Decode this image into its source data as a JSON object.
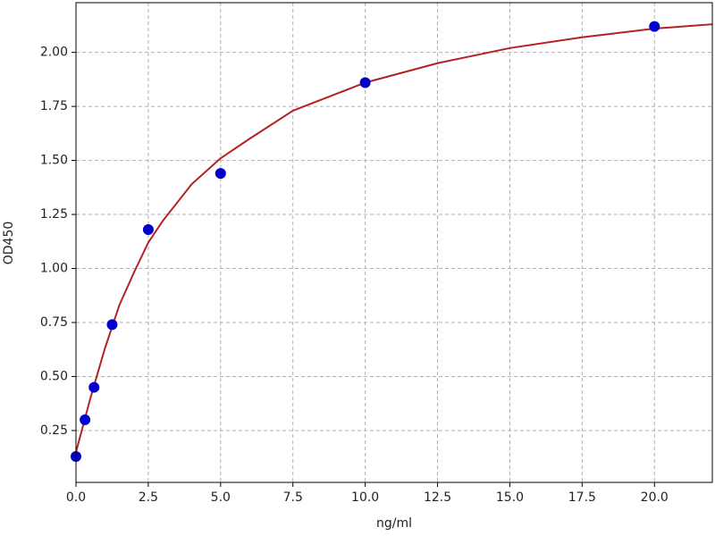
{
  "chart_data": {
    "type": "scatter",
    "x_label": "ng/ml",
    "y_label": "OD450",
    "xlim": [
      0,
      22
    ],
    "ylim": [
      0.01,
      2.23
    ],
    "xticks": [
      {
        "value": 0,
        "label": "0.0"
      },
      2.5,
      {
        "value": 5,
        "label": "5.0"
      },
      7.5,
      {
        "value": 10,
        "label": "10.0"
      },
      12.5,
      {
        "value": 15,
        "label": "15.0"
      },
      17.5,
      {
        "value": 20,
        "label": "20.0"
      }
    ],
    "yticks": [
      0.25,
      {
        "value": 0.5,
        "label": "0.50"
      },
      0.75,
      {
        "value": 1,
        "label": "1.00"
      },
      1.25,
      {
        "value": 1.5,
        "label": "1.50"
      },
      1.75,
      {
        "value": 2,
        "label": "2.00"
      }
    ],
    "grid": true,
    "series": [
      {
        "type": "line",
        "color": "#b22222",
        "x": [
          0,
          0.5,
          1,
          1.5,
          2,
          2.5,
          3,
          4,
          5,
          6,
          7.5,
          10,
          12.5,
          15,
          17.5,
          20,
          22
        ],
        "values": [
          0.15,
          0.4,
          0.63,
          0.83,
          0.98,
          1.12,
          1.22,
          1.39,
          1.51,
          1.6,
          1.73,
          1.86,
          1.95,
          2.02,
          2.07,
          2.11,
          2.13
        ]
      },
      {
        "type": "scatter",
        "color": "#0000cc",
        "x": [
          0,
          0.3125,
          0.625,
          1.25,
          2.5,
          5,
          10,
          20
        ],
        "values": [
          0.13,
          0.3,
          0.45,
          0.74,
          1.18,
          1.44,
          1.86,
          2.12
        ]
      }
    ]
  }
}
